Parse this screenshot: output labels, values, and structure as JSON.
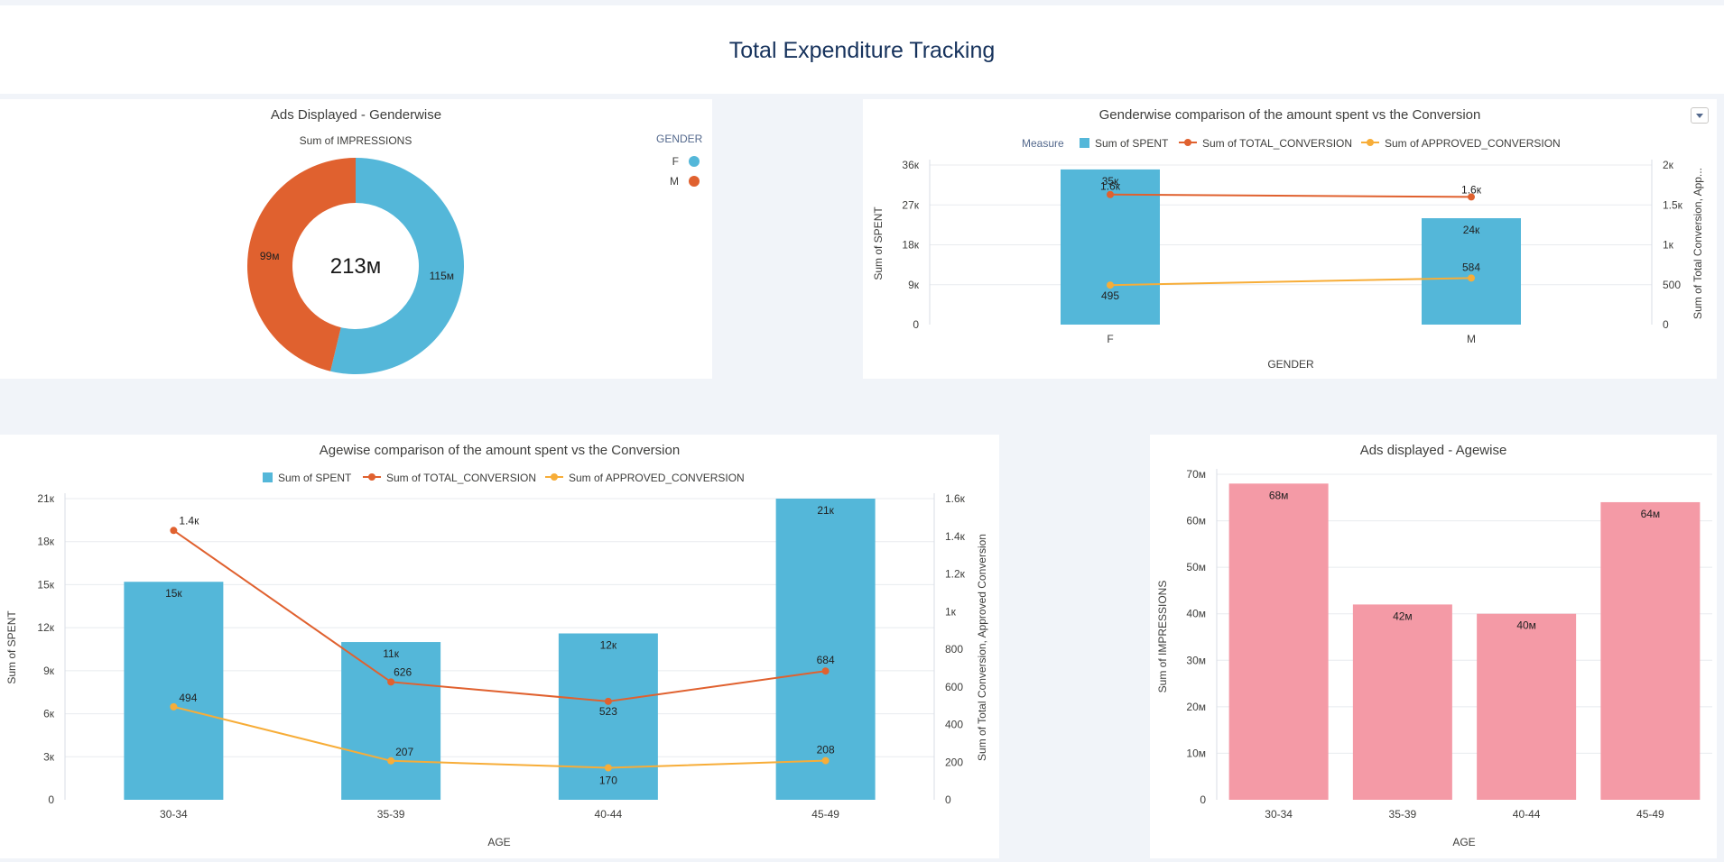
{
  "page_title": "Total Expenditure Tracking",
  "colors": {
    "spent": "#54b7d9",
    "total_conversion": "#e0612f",
    "approved_conversion": "#f7ad38",
    "female": "#54b7d9",
    "male": "#e0612f",
    "age_bar": "#f49aa6",
    "title": "#16325c"
  },
  "icons": {
    "panel_menu": "chevron-down-icon"
  },
  "gender_donut": {
    "title": "Ads Displayed - Genderwise",
    "measure_label": "Sum of IMPRESSIONS",
    "center_label": "213м",
    "legend_title": "GENDER",
    "legend": [
      {
        "label": "F",
        "color": "#54b7d9"
      },
      {
        "label": "M",
        "color": "#e0612f"
      }
    ]
  },
  "gender_combo": {
    "title": "Genderwise comparison of the amount spent vs the Conversion",
    "legend_title": "Measure",
    "legend": [
      "Sum of SPENT",
      "Sum of TOTAL_CONVERSION",
      "Sum of APPROVED_CONVERSION"
    ],
    "y_left_label": "Sum of SPENT",
    "y_right_label": "Sum of Total Conversion, App...",
    "x_label": "GENDER",
    "y_left_ticks": [
      "0",
      "9к",
      "18к",
      "27к",
      "36к"
    ],
    "y_right_ticks": [
      "0",
      "500",
      "1к",
      "1.5к",
      "2к"
    ]
  },
  "age_combo": {
    "title": "Agewise comparison of the amount spent vs the Conversion",
    "legend": [
      "Sum of SPENT",
      "Sum of TOTAL_CONVERSION",
      "Sum of APPROVED_CONVERSION"
    ],
    "y_left_label": "Sum of SPENT",
    "y_right_label": "Sum of Total Conversion, Approved Conversion",
    "x_label": "AGE",
    "y_left_ticks": [
      "0",
      "3к",
      "6к",
      "9к",
      "12к",
      "15к",
      "18к",
      "21к"
    ],
    "y_right_ticks": [
      "0",
      "200",
      "400",
      "600",
      "800",
      "1к",
      "1.2к",
      "1.4к",
      "1.6к"
    ]
  },
  "age_bar": {
    "title": "Ads displayed - Agewise",
    "y_label": "Sum of IMPRESSIONS",
    "x_label": "AGE",
    "y_ticks": [
      "0",
      "10м",
      "20м",
      "30м",
      "40м",
      "50м",
      "60м",
      "70м"
    ]
  },
  "chart_data": [
    {
      "type": "pie",
      "title": "Ads Displayed - Genderwise",
      "categories": [
        "F",
        "M"
      ],
      "values": [
        115000000,
        99000000
      ],
      "value_labels": [
        "115м",
        "99м"
      ],
      "total": 213000000
    },
    {
      "type": "bar",
      "title": "Genderwise comparison of the amount spent vs the Conversion",
      "categories": [
        "F",
        "M"
      ],
      "xlabel": "GENDER",
      "ylabel": "Sum of SPENT",
      "ylim": [
        0,
        36000
      ],
      "y2lim": [
        0,
        2000
      ],
      "series": [
        {
          "name": "Sum of SPENT",
          "kind": "bar",
          "axis": "left",
          "values": [
            35000,
            24000
          ],
          "labels": [
            "35к",
            "24к"
          ]
        },
        {
          "name": "Sum of TOTAL_CONVERSION",
          "kind": "line",
          "axis": "right",
          "values": [
            1630,
            1600
          ],
          "labels": [
            "1.6к",
            "1.6к"
          ]
        },
        {
          "name": "Sum of APPROVED_CONVERSION",
          "kind": "line",
          "axis": "right",
          "values": [
            495,
            584
          ],
          "labels": [
            "495",
            "584"
          ]
        }
      ]
    },
    {
      "type": "bar",
      "title": "Agewise comparison of the amount spent vs the Conversion",
      "categories": [
        "30-34",
        "35-39",
        "40-44",
        "45-49"
      ],
      "xlabel": "AGE",
      "ylabel": "Sum of SPENT",
      "ylim": [
        0,
        21000
      ],
      "y2lim": [
        0,
        1600
      ],
      "series": [
        {
          "name": "Sum of SPENT",
          "kind": "bar",
          "axis": "left",
          "values": [
            15200,
            11000,
            11600,
            21000
          ],
          "labels": [
            "15к",
            "11к",
            "12к",
            "21к"
          ]
        },
        {
          "name": "Sum of TOTAL_CONVERSION",
          "kind": "line",
          "axis": "right",
          "values": [
            1431,
            626,
            523,
            684
          ],
          "labels": [
            "1.4к",
            "626",
            "523",
            "684"
          ]
        },
        {
          "name": "Sum of APPROVED_CONVERSION",
          "kind": "line",
          "axis": "right",
          "values": [
            494,
            207,
            170,
            208
          ],
          "labels": [
            "494",
            "207",
            "170",
            "208"
          ]
        }
      ]
    },
    {
      "type": "bar",
      "title": "Ads displayed - Agewise",
      "categories": [
        "30-34",
        "35-39",
        "40-44",
        "45-49"
      ],
      "xlabel": "AGE",
      "ylabel": "Sum of IMPRESSIONS",
      "ylim": [
        0,
        70000000
      ],
      "values": [
        68000000,
        42000000,
        40000000,
        64000000
      ],
      "labels": [
        "68м",
        "42м",
        "40м",
        "64м"
      ]
    }
  ]
}
